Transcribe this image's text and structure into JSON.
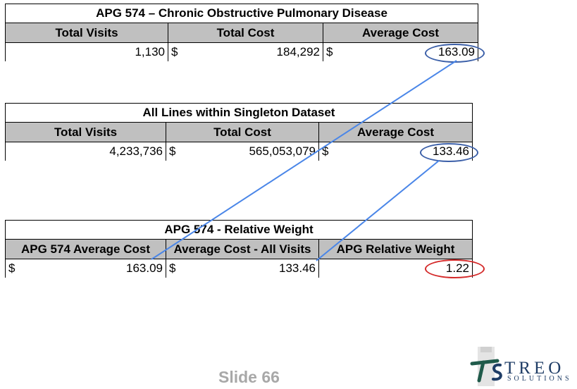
{
  "table1": {
    "title": "APG 574 – Chronic Obstructive Pulmonary Disease",
    "headers": [
      "Total Visits",
      "Total Cost",
      "Average Cost"
    ],
    "visits": "1,130",
    "cost_symbol": "$",
    "cost": "184,292",
    "avg_symbol": "$",
    "avg": "163.09"
  },
  "table2": {
    "title": "All Lines within Singleton Dataset",
    "headers": [
      "Total Visits",
      "Total Cost",
      "Average Cost"
    ],
    "visits": "4,233,736",
    "cost_symbol": "$",
    "cost": "565,053,079",
    "avg_symbol": "$",
    "avg": "133.46"
  },
  "table3": {
    "title": "APG 574 - Relative Weight",
    "headers": [
      "APG 574 Average Cost",
      "Average Cost - All Visits",
      "APG Relative Weight"
    ],
    "apg_avg_symbol": "$",
    "apg_avg": "163.09",
    "all_avg_symbol": "$",
    "all_avg": "133.46",
    "weight": "1.22"
  },
  "colors": {
    "header_bg": "#c0c0c0",
    "connector": "#4a86e8",
    "ring_blue": "#3b5fa8",
    "ring_red": "#d42a2a"
  },
  "footer": {
    "slide": "Slide 66",
    "logo_text": "TREO",
    "logo_sub": "SOLUTIONS"
  }
}
